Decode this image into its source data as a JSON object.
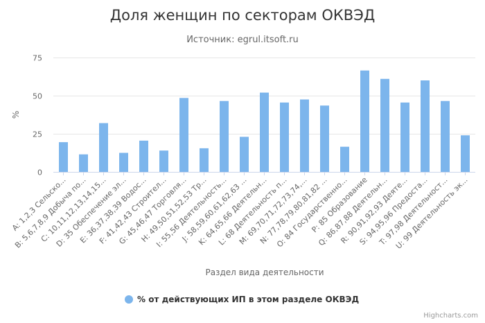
{
  "chart_data": {
    "type": "bar",
    "title": "Доля женщин по секторам ОКВЭД",
    "subtitle": "Источник: egrul.itsoft.ru",
    "xlabel": "Раздел вида деятельности",
    "ylabel": "%",
    "ylim": [
      0,
      75
    ],
    "yticks": [
      0,
      25,
      50,
      75
    ],
    "grid": true,
    "legend_position": "bottom",
    "color": "#7cb5ec",
    "categories": [
      "A: 1,2,3 Сельско...",
      "B: 5,6,7,8,9 Добыча по...",
      "C: 10,11,12,13,14,15...",
      "D: 35 Обеспечение эл...",
      "E: 36,37,38,39 Водос...",
      "F: 41,42,43 Строител...",
      "G: 45,46,47 Торговля...",
      "H: 49,50,51,52,53 Тр...",
      "I: 55,56 Деятельность...",
      "J: 58,59,60,61,62,63 ...",
      "K: 64,65,66 Деятельн...",
      "L: 68 Деятельность п...",
      "M: 69,70,71,72,73,74,...",
      "N: 77,78,79,80,81,82 ...",
      "O: 84 Государственно...",
      "P: 85 Образование",
      "Q: 86,87,88 Деятельн...",
      "R: 90,91,92,93 Деяте...",
      "S: 94,95,96 Предоста...",
      "T: 97,98 Деятельност...",
      "U: 99 Деятельность эк..."
    ],
    "series": [
      {
        "name": "% от действующих ИП в этом разделе ОКВЭД",
        "values": [
          19.5,
          11.5,
          32,
          12.5,
          20.5,
          14,
          48.5,
          15.5,
          46.5,
          23,
          52,
          45.5,
          47.5,
          43.5,
          16.5,
          66.5,
          61,
          45.5,
          60,
          46.5,
          24
        ]
      }
    ]
  },
  "credits": "Highcharts.com"
}
